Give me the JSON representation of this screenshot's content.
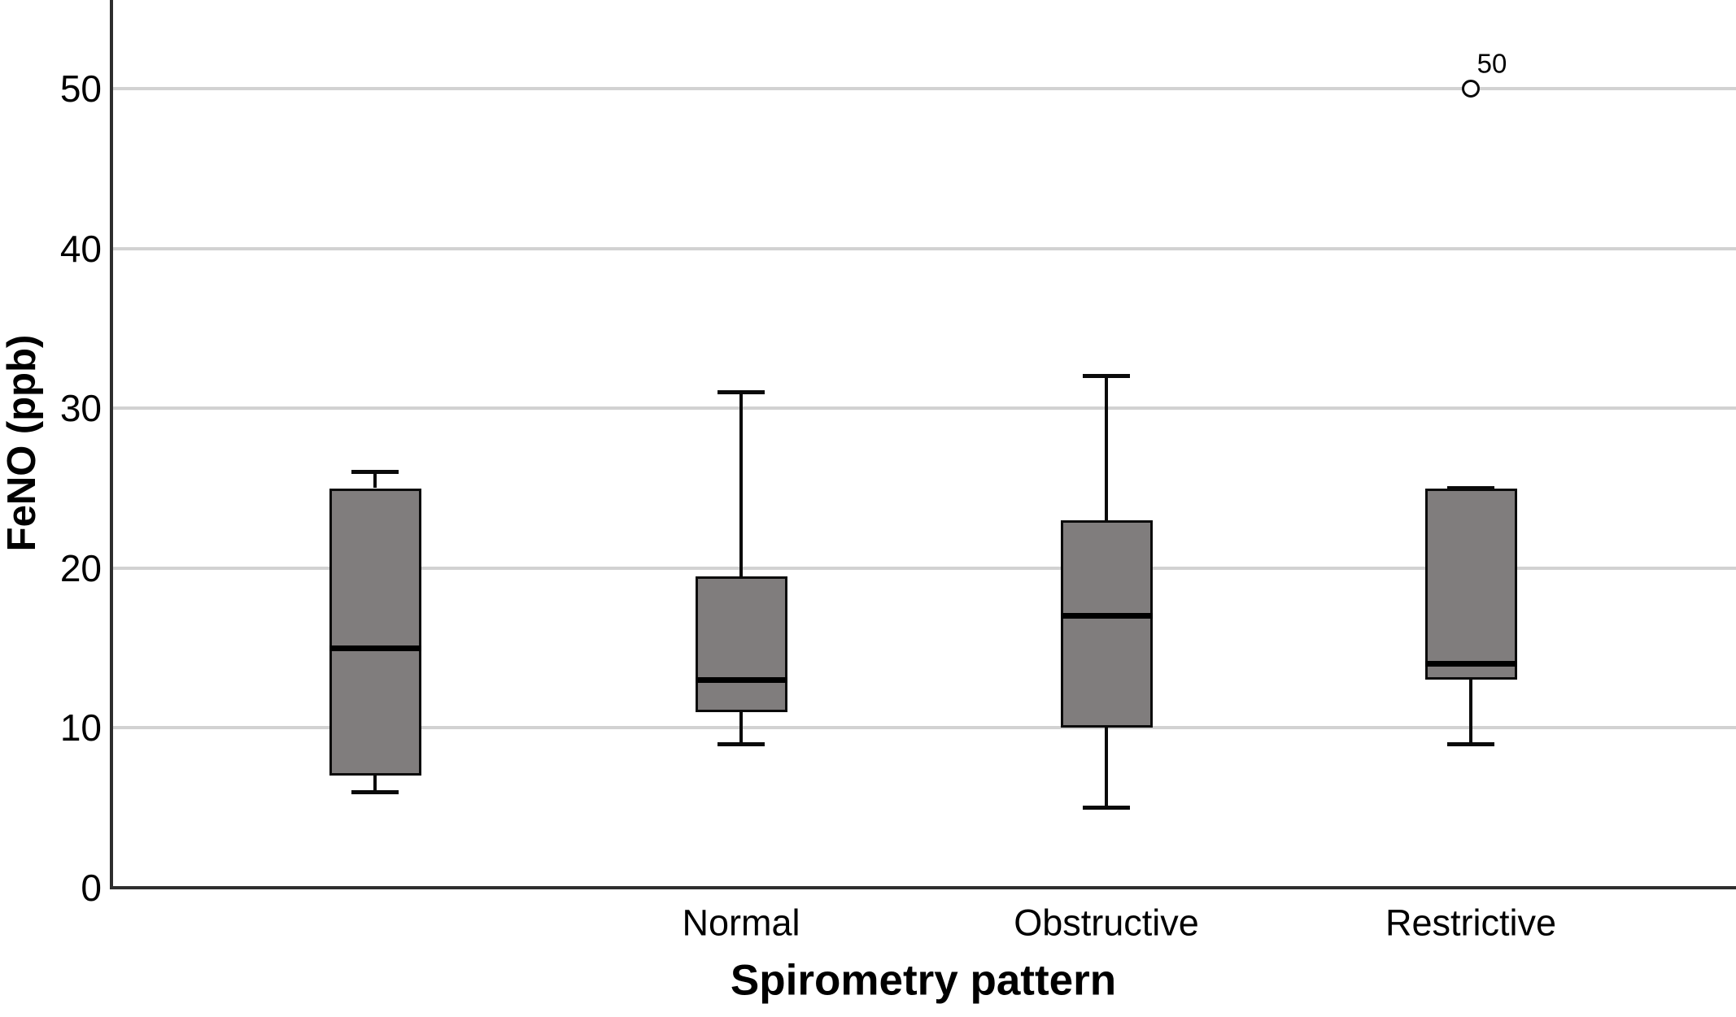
{
  "chart_data": {
    "type": "boxplot",
    "title": "",
    "xlabel": "Spirometry pattern",
    "ylabel": "FeNO (ppb)",
    "ylim": [
      0,
      55.5
    ],
    "yticks": [
      0,
      10,
      20,
      30,
      40,
      50
    ],
    "grid": "horizontal",
    "legend": "none",
    "categories": [
      "",
      "Normal",
      "Obstructive",
      "Restrictive"
    ],
    "series": [
      {
        "category": "",
        "whisker_low": 6,
        "q1": 7,
        "median": 15,
        "q3": 25,
        "whisker_high": 26,
        "outliers": []
      },
      {
        "category": "Normal",
        "whisker_low": 9,
        "q1": 11,
        "median": 13,
        "q3": 19.5,
        "whisker_high": 31,
        "outliers": []
      },
      {
        "category": "Obstructive",
        "whisker_low": 5,
        "q1": 10,
        "median": 17,
        "q3": 23,
        "whisker_high": 32,
        "outliers": []
      },
      {
        "category": "Restrictive",
        "whisker_low": 9,
        "q1": 13,
        "median": 14,
        "q3": 25,
        "whisker_high": 25,
        "outliers": [
          {
            "value": 50,
            "label": "50"
          }
        ]
      }
    ],
    "colors": {
      "box_fill": "#807d7d",
      "box_border": "#0a0a0a",
      "median": "#000000",
      "whisker": "#0a0a0a",
      "grid": "#d2d2d2",
      "axis": "#2e2e2e",
      "text": "#000000",
      "background": "#ffffff"
    }
  }
}
